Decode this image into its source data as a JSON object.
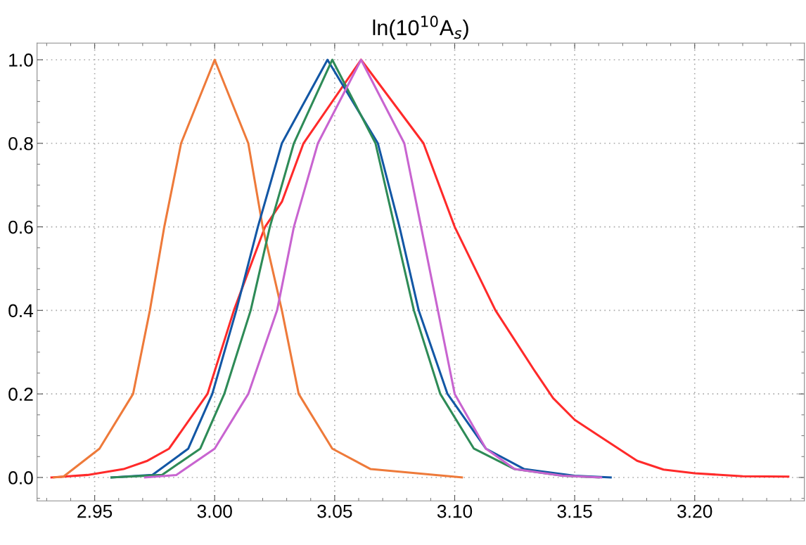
{
  "chart_data": {
    "type": "line",
    "title": "ln(10$^{10}$A$_{s}$)",
    "grid": true,
    "line_style": "solid",
    "marker": "none",
    "xlim": [
      2.926,
      3.2457
    ],
    "ylim": [
      -0.056,
      1.04
    ],
    "xticks": [
      {
        "value": 2.95,
        "label": "2.95"
      },
      {
        "value": 3.0,
        "label": "3.00"
      },
      {
        "value": 3.05,
        "label": "3.05"
      },
      {
        "value": 3.1,
        "label": "3.10"
      },
      {
        "value": 3.15,
        "label": "3.15"
      },
      {
        "value": 3.2,
        "label": "3.20"
      }
    ],
    "yticks": [
      {
        "value": 0,
        "label": "0.0"
      },
      {
        "value": 0.2,
        "label": "0.2"
      },
      {
        "value": 0.4,
        "label": "0.4"
      },
      {
        "value": 0.6,
        "label": "0.6"
      },
      {
        "value": 0.8,
        "label": "0.8"
      },
      {
        "value": 1.0,
        "label": "1.0"
      }
    ],
    "series": [
      {
        "color": "#ff2a2a",
        "x": [
          2.932,
          2.947,
          2.962,
          2.972,
          2.981,
          2.997,
          3.008,
          3.021,
          3.028,
          3.037,
          3.061,
          3.087,
          3.1,
          3.117,
          3.133,
          3.141,
          3.15,
          3.16,
          3.176,
          3.187,
          3.2,
          3.22,
          3.239
        ],
        "values": [
          0,
          0.006,
          0.02,
          0.04,
          0.069,
          0.2,
          0.4,
          0.6,
          0.66,
          0.8,
          1.0,
          0.8,
          0.6,
          0.4,
          0.258,
          0.19,
          0.138,
          0.1,
          0.04,
          0.019,
          0.01,
          0.003,
          0.002
        ]
      },
      {
        "color": "#ee7a3a",
        "x": [
          2.933,
          2.937,
          2.952,
          2.966,
          2.973,
          2.979,
          2.986,
          3.0,
          3.014,
          3.02,
          3.028,
          3.035,
          3.049,
          3.065,
          3.103
        ],
        "values": [
          0,
          0.002,
          0.069,
          0.2,
          0.4,
          0.6,
          0.8,
          1.0,
          0.8,
          0.6,
          0.4,
          0.2,
          0.069,
          0.02,
          0
        ]
      },
      {
        "color": "#1357a5",
        "x": [
          2.957,
          2.974,
          2.989,
          2.999,
          3.009,
          3.018,
          3.028,
          3.047,
          3.068,
          3.077,
          3.085,
          3.097,
          3.113,
          3.129,
          3.15,
          3.165
        ],
        "values": [
          0,
          0.006,
          0.069,
          0.2,
          0.4,
          0.6,
          0.8,
          1.0,
          0.8,
          0.6,
          0.4,
          0.2,
          0.069,
          0.02,
          0.004,
          0
        ]
      },
      {
        "color": "#2e8b57",
        "x": [
          2.957,
          2.978,
          2.994,
          3.004,
          3.015,
          3.023,
          3.033,
          3.049,
          3.067,
          3.075,
          3.083,
          3.094,
          3.108,
          3.125,
          3.145,
          3.16
        ],
        "values": [
          0,
          0.006,
          0.069,
          0.2,
          0.4,
          0.6,
          0.8,
          1.0,
          0.8,
          0.6,
          0.4,
          0.2,
          0.069,
          0.02,
          0.004,
          0
        ]
      },
      {
        "color": "#c864d0",
        "x": [
          2.971,
          2.984,
          3.0,
          3.014,
          3.026,
          3.033,
          3.043,
          3.061,
          3.079,
          3.086,
          3.093,
          3.1,
          3.113,
          3.125,
          3.145,
          3.161
        ],
        "values": [
          0,
          0.006,
          0.069,
          0.2,
          0.4,
          0.6,
          0.8,
          1.0,
          0.8,
          0.6,
          0.4,
          0.2,
          0.069,
          0.02,
          0.004,
          0
        ]
      }
    ]
  }
}
